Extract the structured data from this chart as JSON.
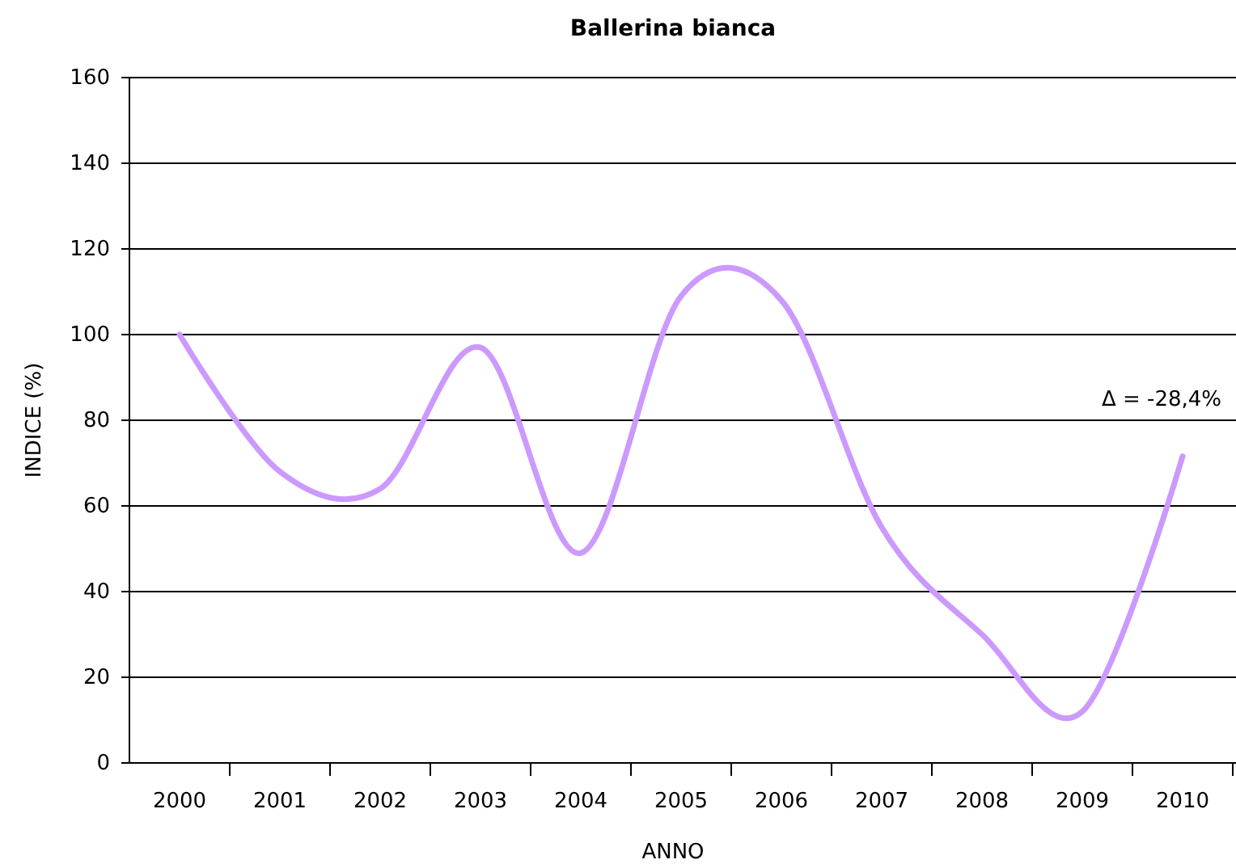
{
  "chart_data": {
    "type": "line",
    "title": "Ballerina bianca",
    "xlabel": "ANNO",
    "ylabel": "INDICE (%)",
    "categories": [
      "2000",
      "2001",
      "2002",
      "2003",
      "2004",
      "2005",
      "2006",
      "2007",
      "2008",
      "2009",
      "2010"
    ],
    "series": [
      {
        "color": "#cc99ff",
        "values": [
          100,
          68,
          64,
          97,
          49,
          109,
          108,
          55,
          30,
          12,
          71.6
        ]
      }
    ],
    "ylim": [
      0,
      160
    ],
    "yticks": [
      0,
      20,
      40,
      60,
      80,
      100,
      120,
      140,
      160
    ],
    "grid": "y",
    "marker": "none",
    "line_style": "solid",
    "annotations": [
      "Δ = -28,4%"
    ]
  }
}
